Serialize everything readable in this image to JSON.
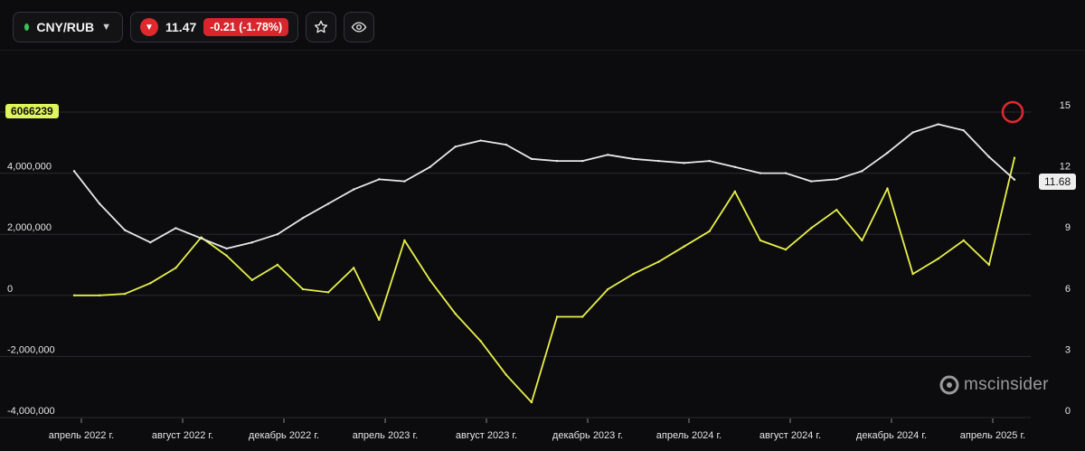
{
  "toolbar": {
    "symbol": "CNY/RUB",
    "price": "11.47",
    "change": "-0.21 (-1.78%)"
  },
  "badges": {
    "left_value": "6066239",
    "right_value": "11.68"
  },
  "watermark": "mscinsider",
  "colors": {
    "background": "#0c0c0e",
    "position_series": "#e8f04a",
    "rate_series": "#e8e8e8",
    "negative": "#e0292f",
    "positive": "#33c45a"
  },
  "chart_data": {
    "type": "line",
    "x_tick_labels": [
      "апрель 2022 г.",
      "август 2022 г.",
      "декабрь 2022 г.",
      "апрель 2023 г.",
      "август 2023 г.",
      "декабрь 2023 г.",
      "апрель 2024 г.",
      "август 2024 г.",
      "декабрь 2024 г.",
      "апрель 2025 г."
    ],
    "x": [
      "2022-03",
      "2022-04",
      "2022-05",
      "2022-06",
      "2022-07",
      "2022-08",
      "2022-09",
      "2022-10",
      "2022-11",
      "2022-12",
      "2023-01",
      "2023-02",
      "2023-03",
      "2023-04",
      "2023-05",
      "2023-06",
      "2023-07",
      "2023-08",
      "2023-09",
      "2023-10",
      "2023-11",
      "2023-12",
      "2024-01",
      "2024-02",
      "2024-03",
      "2024-04",
      "2024-05",
      "2024-06",
      "2024-07",
      "2024-08",
      "2024-09",
      "2024-10",
      "2024-11",
      "2024-12",
      "2025-01",
      "2025-02",
      "2025-03",
      "2025-04"
    ],
    "left_axis": {
      "ticks": [
        "-4,000,000",
        "-2,000,000",
        "0",
        "2,000,000",
        "4,000,000"
      ],
      "ylim": [
        -4000000,
        6000000
      ]
    },
    "right_axis": {
      "ticks": [
        "0",
        "3",
        "6",
        "9",
        "12",
        "15"
      ],
      "ylim": [
        0,
        15
      ]
    },
    "grid": true,
    "series": [
      {
        "axis": "left",
        "color": "#e8f04a",
        "values": [
          0,
          0,
          50000,
          400000,
          900000,
          1900000,
          1300000,
          500000,
          1000000,
          200000,
          100000,
          900000,
          -800000,
          1800000,
          500000,
          -600000,
          -1500000,
          -2600000,
          -3500000,
          -700000,
          -700000,
          200000,
          700000,
          1100000,
          1600000,
          2100000,
          3400000,
          1800000,
          1500000,
          2200000,
          2800000,
          1800000,
          3500000,
          700000,
          1200000,
          1800000,
          1000000,
          4500000
        ]
      },
      {
        "axis": "right",
        "color": "#e8e8e8",
        "values": [
          12.1,
          10.5,
          9.2,
          8.6,
          9.3,
          8.8,
          8.3,
          8.6,
          9.0,
          9.8,
          10.5,
          11.2,
          11.7,
          11.6,
          12.3,
          13.3,
          13.6,
          13.4,
          12.7,
          12.6,
          12.6,
          12.9,
          12.7,
          12.6,
          12.5,
          12.6,
          12.3,
          12.0,
          12.0,
          11.6,
          11.7,
          12.1,
          13.0,
          14.0,
          14.4,
          14.1,
          12.8,
          11.68
        ]
      }
    ]
  }
}
